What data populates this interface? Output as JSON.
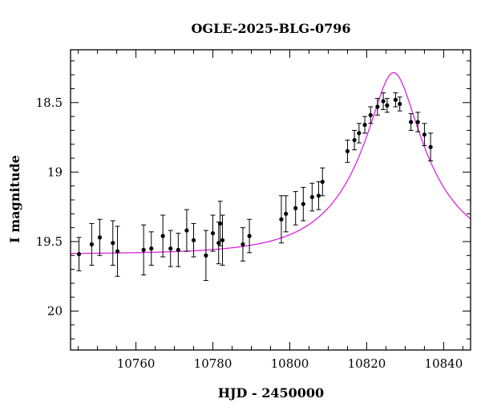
{
  "chart_data": {
    "type": "scatter",
    "title": "OGLE-2025-BLG-0796",
    "xlabel": "HJD - 2450000",
    "ylabel": "I magnitude",
    "xlim": [
      10743,
      10847
    ],
    "ylim": [
      20.28,
      18.12
    ],
    "y_inverted": true,
    "grid": false,
    "x_ticks": [
      10760,
      10780,
      10800,
      10820,
      10840
    ],
    "x_tick_labels": [
      "10760",
      "10780",
      "10800",
      "10820",
      "10840"
    ],
    "y_ticks": [
      18.5,
      19,
      19.5,
      20
    ],
    "y_tick_labels": [
      "18.5",
      "19",
      "19.5",
      "20"
    ],
    "colors": {
      "model": "#dd22dd",
      "points": "#000000",
      "errorbars": "#000000"
    },
    "model_curve": {
      "baseline": 19.59,
      "t0": 10827.0,
      "u0": 0.27,
      "tE": 20.0,
      "fs": 0.83
    },
    "points": [
      {
        "x": 10745.2,
        "y": 19.59,
        "err": 0.12
      },
      {
        "x": 10748.5,
        "y": 19.52,
        "err": 0.15
      },
      {
        "x": 10750.6,
        "y": 19.47,
        "err": 0.13
      },
      {
        "x": 10754.0,
        "y": 19.51,
        "err": 0.16
      },
      {
        "x": 10755.2,
        "y": 19.57,
        "err": 0.18
      },
      {
        "x": 10762.0,
        "y": 19.56,
        "err": 0.18
      },
      {
        "x": 10764.0,
        "y": 19.55,
        "err": 0.12
      },
      {
        "x": 10767.0,
        "y": 19.46,
        "err": 0.15
      },
      {
        "x": 10769.0,
        "y": 19.55,
        "err": 0.13
      },
      {
        "x": 10771.0,
        "y": 19.56,
        "err": 0.12
      },
      {
        "x": 10773.2,
        "y": 19.42,
        "err": 0.15
      },
      {
        "x": 10775.0,
        "y": 19.49,
        "err": 0.12
      },
      {
        "x": 10778.2,
        "y": 19.6,
        "err": 0.18
      },
      {
        "x": 10780.0,
        "y": 19.44,
        "err": 0.13
      },
      {
        "x": 10781.5,
        "y": 19.51,
        "err": 0.15
      },
      {
        "x": 10781.9,
        "y": 19.37,
        "err": 0.16
      },
      {
        "x": 10782.5,
        "y": 19.49,
        "err": 0.18
      },
      {
        "x": 10787.8,
        "y": 19.52,
        "err": 0.12
      },
      {
        "x": 10789.5,
        "y": 19.46,
        "err": 0.12
      },
      {
        "x": 10797.8,
        "y": 19.34,
        "err": 0.17
      },
      {
        "x": 10799.0,
        "y": 19.3,
        "err": 0.13
      },
      {
        "x": 10801.5,
        "y": 19.26,
        "err": 0.12
      },
      {
        "x": 10803.5,
        "y": 19.23,
        "err": 0.12
      },
      {
        "x": 10805.8,
        "y": 19.18,
        "err": 0.1
      },
      {
        "x": 10807.5,
        "y": 19.17,
        "err": 0.1
      },
      {
        "x": 10808.5,
        "y": 19.07,
        "err": 0.1
      },
      {
        "x": 10815.0,
        "y": 18.85,
        "err": 0.08
      },
      {
        "x": 10816.8,
        "y": 18.77,
        "err": 0.07
      },
      {
        "x": 10818.0,
        "y": 18.72,
        "err": 0.07
      },
      {
        "x": 10819.5,
        "y": 18.66,
        "err": 0.06
      },
      {
        "x": 10821.0,
        "y": 18.59,
        "err": 0.06
      },
      {
        "x": 10822.8,
        "y": 18.53,
        "err": 0.06
      },
      {
        "x": 10824.3,
        "y": 18.49,
        "err": 0.06
      },
      {
        "x": 10825.3,
        "y": 18.52,
        "err": 0.05
      },
      {
        "x": 10827.5,
        "y": 18.48,
        "err": 0.05
      },
      {
        "x": 10828.6,
        "y": 18.51,
        "err": 0.05
      },
      {
        "x": 10831.5,
        "y": 18.64,
        "err": 0.06
      },
      {
        "x": 10833.3,
        "y": 18.64,
        "err": 0.07
      },
      {
        "x": 10835.0,
        "y": 18.73,
        "err": 0.08
      },
      {
        "x": 10836.6,
        "y": 18.82,
        "err": 0.1
      }
    ]
  }
}
